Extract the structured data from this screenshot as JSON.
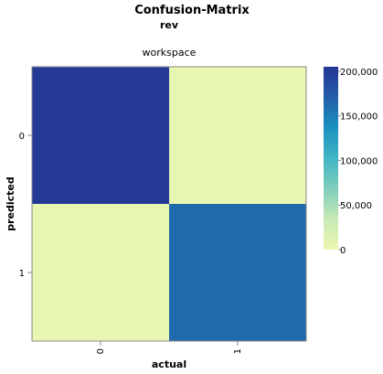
{
  "chart_data": {
    "type": "heatmap",
    "title": "Confusion-Matrix",
    "subtitle": "rev",
    "column_header": "workspace",
    "xlabel": "actual",
    "ylabel": "predicted",
    "x_categories": [
      "0",
      "1"
    ],
    "y_categories": [
      "0",
      "1"
    ],
    "cells": [
      {
        "actual": "0",
        "predicted": "0",
        "value": 200000
      },
      {
        "actual": "1",
        "predicted": "0",
        "value": 5000
      },
      {
        "actual": "0",
        "predicted": "1",
        "value": 5000
      },
      {
        "actual": "1",
        "predicted": "1",
        "value": 163000
      }
    ],
    "color_scale": {
      "domain": [
        0,
        205000
      ],
      "colors": [
        "#edf8b1",
        "#c7e9b4",
        "#7fcdbb",
        "#41b6c4",
        "#1d91c0",
        "#225ea8",
        "#253494"
      ]
    },
    "legend": {
      "ticks": [
        0,
        50000,
        100000,
        150000,
        200000
      ],
      "tick_labels": [
        "0",
        "50,000",
        "100,000",
        "150,000",
        "200,000"
      ],
      "position": "right"
    }
  }
}
